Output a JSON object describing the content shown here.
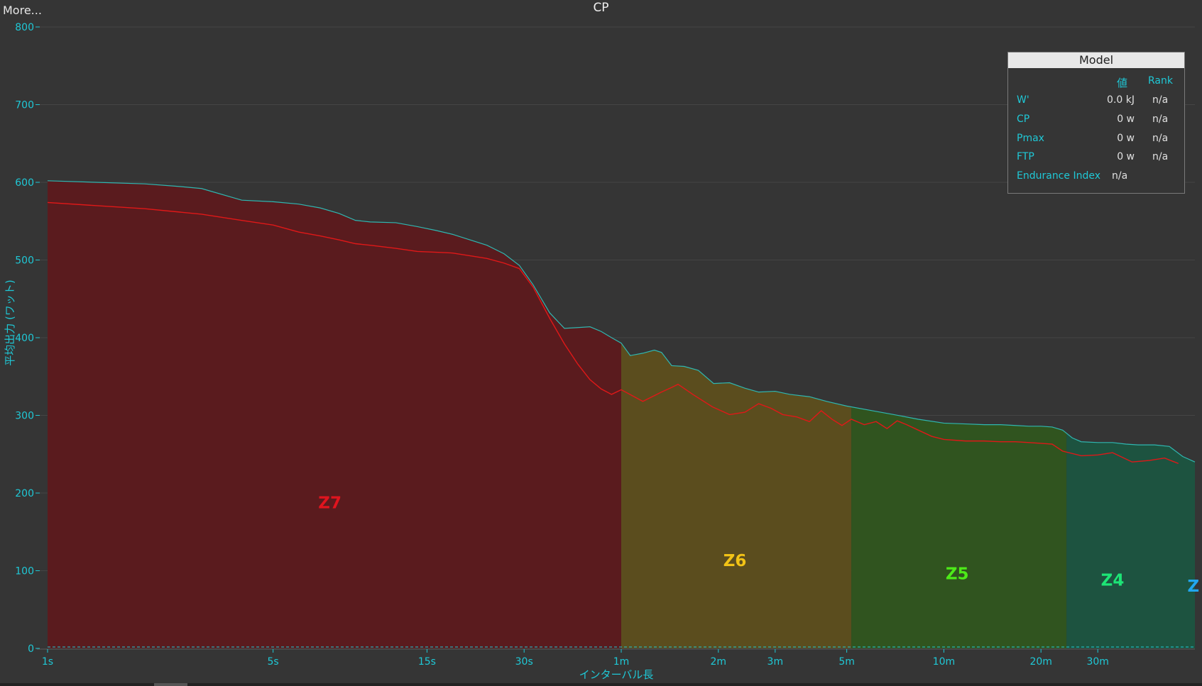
{
  "toolbar": {
    "more_label": "More..."
  },
  "chart_title": "CP",
  "model": {
    "header": "Model",
    "col_value": "値",
    "col_rank": "Rank",
    "rows": [
      {
        "name": "W'",
        "value": "0.0 kJ",
        "rank": "n/a"
      },
      {
        "name": "CP",
        "value": "0 w",
        "rank": "n/a"
      },
      {
        "name": "Pmax",
        "value": "0 w",
        "rank": "n/a"
      },
      {
        "name": "FTP",
        "value": "0 w",
        "rank": "n/a"
      },
      {
        "name": "Endurance Index",
        "value": "n/a",
        "rank": ""
      }
    ]
  },
  "colors": {
    "background": "#353535",
    "axis": "#1fc8d6",
    "grid": "#454545",
    "curve_best": "#2fb7b1",
    "curve_current": "#e01818"
  },
  "chart_data": {
    "type": "area",
    "title": "CP",
    "xlabel": "インターバル長",
    "ylabel": "平均出力 (ワット)",
    "x_scale": "log",
    "ylim": [
      0,
      800
    ],
    "yticks": [
      0,
      100,
      200,
      300,
      400,
      500,
      600,
      700,
      800
    ],
    "xticks": [
      {
        "t": 1,
        "label": "1s"
      },
      {
        "t": 5,
        "label": "5s"
      },
      {
        "t": 15,
        "label": "15s"
      },
      {
        "t": 30,
        "label": "30s"
      },
      {
        "t": 60,
        "label": "1m"
      },
      {
        "t": 120,
        "label": "2m"
      },
      {
        "t": 180,
        "label": "3m"
      },
      {
        "t": 300,
        "label": "5m"
      },
      {
        "t": 600,
        "label": "10m"
      },
      {
        "t": 1200,
        "label": "20m"
      },
      {
        "t": 1800,
        "label": "30m"
      }
    ],
    "grid": true,
    "zones": [
      {
        "name": "Z7",
        "from": 1,
        "to": 60,
        "color": "#5a1b1e",
        "label_color": "#e0141e",
        "label_t": 7.5,
        "label_w": 198
      },
      {
        "name": "Z6",
        "from": 60,
        "to": 310,
        "color": "#5b4d1e",
        "label_color": "#f2c316",
        "label_t": 135,
        "label_w": 139
      },
      {
        "name": "Z5",
        "from": 310,
        "to": 1440,
        "color": "#30541f",
        "label_color": "#4dea18",
        "label_t": 660,
        "label_w": 116
      },
      {
        "name": "Z4",
        "from": 1440,
        "to": 3600,
        "color": "#1d5340",
        "label_color": "#1de576",
        "label_t": 2000,
        "label_w": 102
      },
      {
        "name": "Z",
        "from": 3600,
        "to": 3600,
        "color": "#1d5340",
        "label_color": "#22a6ef",
        "label_t": 3560,
        "label_w": 94
      }
    ],
    "series": [
      {
        "name": "",
        "role": "best",
        "x": [
          1,
          2,
          2.5,
          3,
          4,
          5,
          6,
          7,
          8,
          9,
          10,
          12,
          14,
          16,
          18,
          20,
          23,
          26,
          29,
          32,
          36,
          40,
          44,
          48,
          52,
          56,
          60,
          64,
          70,
          76,
          80,
          86,
          94,
          104,
          116,
          130,
          145,
          160,
          180,
          200,
          230,
          260,
          300,
          360,
          420,
          500,
          600,
          700,
          800,
          900,
          1000,
          1100,
          1200,
          1300,
          1400,
          1440,
          1500,
          1600,
          1800,
          2000,
          2200,
          2400,
          2700,
          3000,
          3300,
          3600
        ],
        "y": [
          602,
          598,
          595,
          592,
          577,
          575,
          572,
          567,
          560,
          551,
          549,
          548,
          543,
          538,
          533,
          527,
          519,
          508,
          493,
          468,
          432,
          412,
          413,
          414,
          408,
          400,
          393,
          377,
          380,
          384,
          381,
          364,
          363,
          358,
          341,
          342,
          335,
          330,
          331,
          327,
          324,
          318,
          312,
          306,
          301,
          295,
          290,
          289,
          288,
          288,
          287,
          286,
          286,
          285,
          281,
          277,
          271,
          266,
          265,
          265,
          263,
          262,
          262,
          260,
          247,
          240
        ]
      },
      {
        "name": "",
        "role": "current",
        "x": [
          1,
          2,
          3,
          4,
          5,
          6,
          7,
          8,
          9,
          10,
          12,
          14,
          16,
          18,
          20,
          23,
          26,
          29,
          32,
          36,
          40,
          44,
          48,
          52,
          56,
          60,
          70,
          80,
          86,
          90,
          100,
          115,
          130,
          145,
          160,
          175,
          190,
          210,
          230,
          250,
          270,
          290,
          310,
          340,
          370,
          400,
          430,
          460,
          500,
          550,
          600,
          700,
          800,
          900,
          1000,
          1100,
          1200,
          1300,
          1400,
          1600,
          1800,
          2000,
          2300,
          2600,
          2900,
          3200
        ],
        "y": [
          574,
          566,
          559,
          551,
          545,
          536,
          531,
          526,
          521,
          519,
          515,
          511,
          510,
          509,
          506,
          502,
          496,
          489,
          465,
          425,
          392,
          366,
          346,
          334,
          327,
          333,
          318,
          330,
          336,
          340,
          327,
          311,
          301,
          304,
          315,
          309,
          301,
          298,
          292,
          306,
          295,
          287,
          295,
          288,
          292,
          283,
          293,
          288,
          281,
          273,
          269,
          267,
          267,
          266,
          266,
          265,
          264,
          263,
          254,
          248,
          249,
          252,
          240,
          242,
          245,
          238
        ]
      }
    ]
  }
}
